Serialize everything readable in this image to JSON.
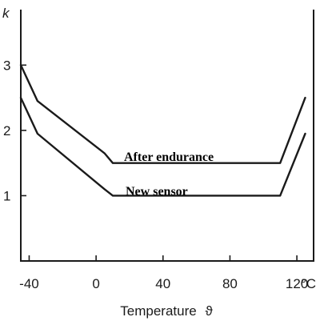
{
  "chart_data": {
    "type": "line",
    "title": "",
    "xlabel": "Temperature",
    "xlabel_symbol": "ϑ",
    "x_unit": "°C",
    "ylabel": "k",
    "xlim": [
      -45,
      130
    ],
    "ylim": [
      0,
      3.85
    ],
    "x_ticks": [
      -40,
      0,
      40,
      80,
      120
    ],
    "y_ticks": [
      1,
      2,
      3
    ],
    "grid": false,
    "series": [
      {
        "name": "After endurance",
        "points": [
          {
            "x": -45,
            "y": 3.0
          },
          {
            "x": -35,
            "y": 2.45
          },
          {
            "x": 5,
            "y": 1.65
          },
          {
            "x": 10,
            "y": 1.5
          },
          {
            "x": 110,
            "y": 1.5
          },
          {
            "x": 125,
            "y": 2.5
          }
        ]
      },
      {
        "name": "New sensor",
        "points": [
          {
            "x": -45,
            "y": 2.5
          },
          {
            "x": -35,
            "y": 1.95
          },
          {
            "x": 5,
            "y": 1.1
          },
          {
            "x": 10,
            "y": 1.0
          },
          {
            "x": 110,
            "y": 1.0
          },
          {
            "x": 125,
            "y": 1.95
          }
        ]
      }
    ]
  }
}
